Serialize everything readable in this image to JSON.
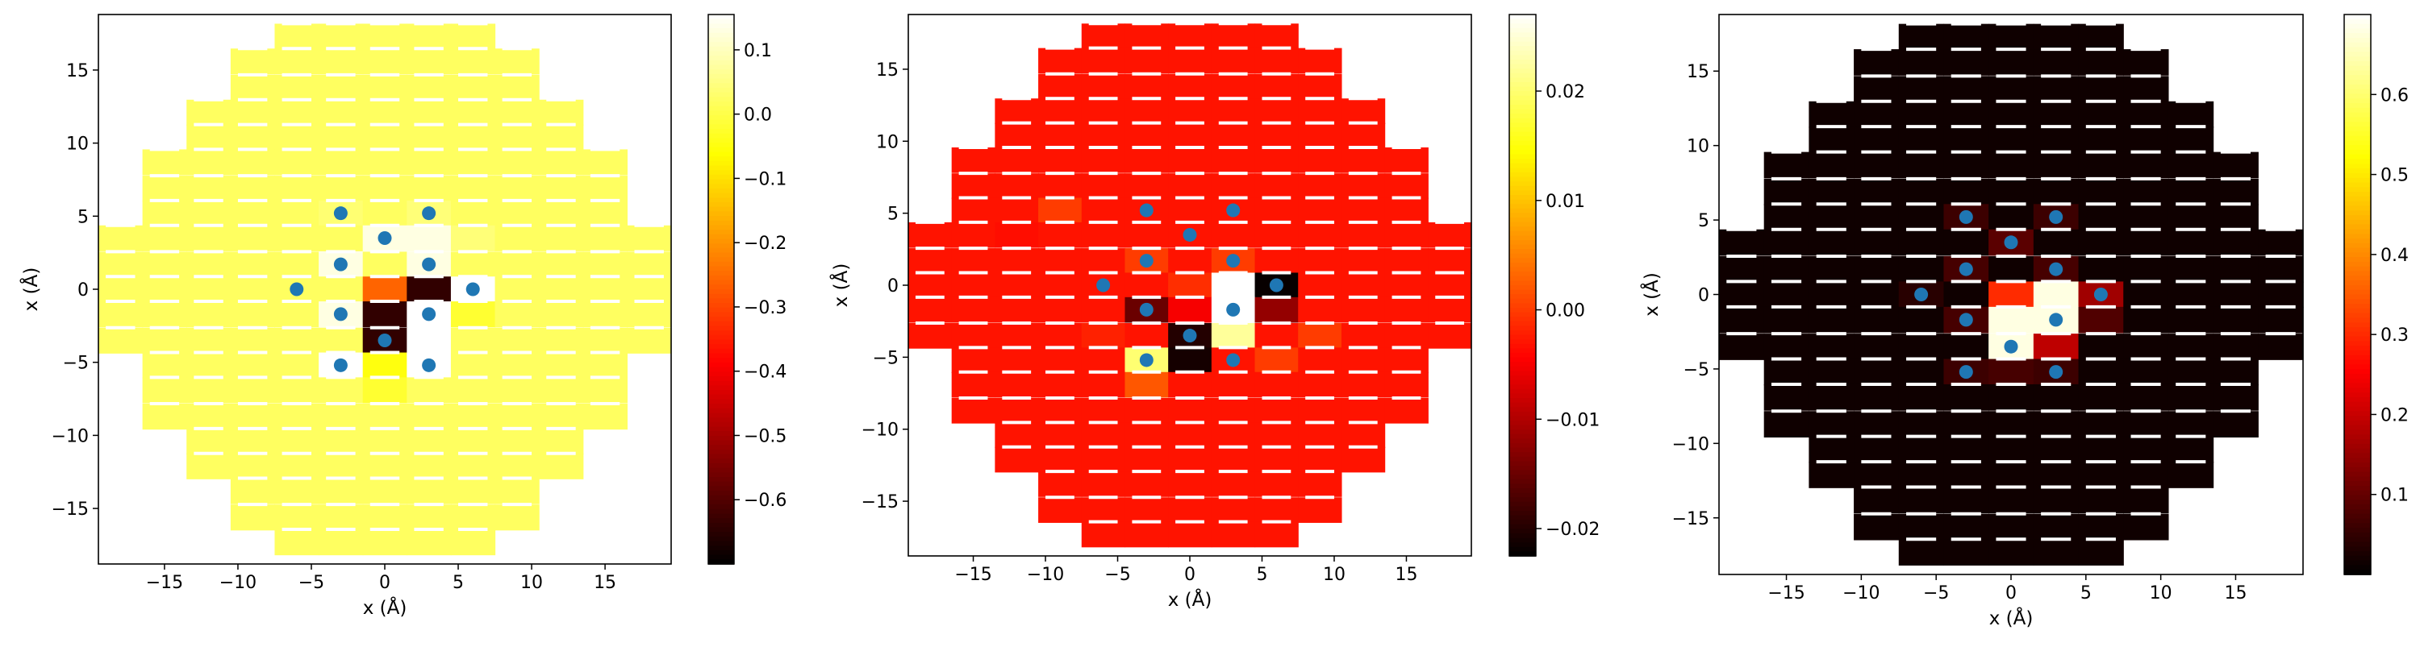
{
  "chart_data": [
    {
      "type": "heatmap",
      "title": "",
      "xlabel": "x (Å)",
      "ylabel": "x (Å)",
      "xlim": [
        -19.5,
        19.5
      ],
      "ylim": [
        -18.8,
        18.8
      ],
      "xticks": [
        -15,
        -10,
        -5,
        0,
        5,
        10,
        15
      ],
      "yticks": [
        -15,
        -10,
        -5,
        0,
        5,
        10,
        15
      ],
      "grid": false,
      "colormap": "hot",
      "colorbar": {
        "min": -0.7,
        "max": 0.155,
        "ticks": [
          0.1,
          0.0,
          -0.1,
          -0.2,
          -0.3,
          -0.4,
          -0.5,
          -0.6
        ],
        "tick_labels": [
          "0.1",
          "0.0",
          "−0.1",
          "−0.2",
          "−0.3",
          "−0.4",
          "−0.5",
          "−0.6"
        ]
      },
      "background_value": 0.02,
      "special_cells": [
        {
          "x": -3,
          "y": 5.2,
          "value": 0.035
        },
        {
          "x": 3,
          "y": 5.2,
          "value": 0.04
        },
        {
          "x": 0,
          "y": 3.5,
          "value": 0.13
        },
        {
          "x": 3,
          "y": 3.5,
          "value": 0.13
        },
        {
          "x": 6,
          "y": 3.5,
          "value": 0.04
        },
        {
          "x": -3,
          "y": 1.7,
          "value": 0.13
        },
        {
          "x": 3,
          "y": 1.7,
          "value": 0.13
        },
        {
          "x": 0,
          "y": 0,
          "value": -0.26
        },
        {
          "x": 3,
          "y": 0,
          "value": -0.64
        },
        {
          "x": 6,
          "y": 0,
          "value": 0.16
        },
        {
          "x": -3,
          "y": -1.7,
          "value": 0.13
        },
        {
          "x": 0,
          "y": -1.7,
          "value": -0.64
        },
        {
          "x": 3,
          "y": -1.7,
          "value": 0.16
        },
        {
          "x": 6,
          "y": -1.7,
          "value": -0.02
        },
        {
          "x": 0,
          "y": -3.5,
          "value": -0.64
        },
        {
          "x": 3,
          "y": -3.5,
          "value": 0.16
        },
        {
          "x": -3,
          "y": -5.2,
          "value": 0.16
        },
        {
          "x": 3,
          "y": -5.2,
          "value": 0.16
        },
        {
          "x": 0,
          "y": -5.2,
          "value": -0.05
        },
        {
          "x": 0,
          "y": -7,
          "value": -0.02
        }
      ],
      "points": [
        {
          "x": -3,
          "y": 5.2
        },
        {
          "x": 3,
          "y": 5.2
        },
        {
          "x": 0,
          "y": 3.5
        },
        {
          "x": -3,
          "y": 1.7
        },
        {
          "x": 3,
          "y": 1.7
        },
        {
          "x": -6,
          "y": 0
        },
        {
          "x": 6,
          "y": 0
        },
        {
          "x": -3,
          "y": -1.7
        },
        {
          "x": 3,
          "y": -1.7
        },
        {
          "x": 0,
          "y": -3.5
        },
        {
          "x": -3,
          "y": -5.2
        },
        {
          "x": 3,
          "y": -5.2
        }
      ]
    },
    {
      "type": "heatmap",
      "title": "",
      "xlabel": "x (Å)",
      "ylabel": "x (Å)",
      "xlim": [
        -19.5,
        19.5
      ],
      "ylim": [
        -18.8,
        18.8
      ],
      "xticks": [
        -15,
        -10,
        -5,
        0,
        5,
        10,
        15
      ],
      "yticks": [
        -15,
        -10,
        -5,
        0,
        5,
        10,
        15
      ],
      "grid": false,
      "colormap": "hot",
      "colorbar": {
        "min": -0.0225,
        "max": 0.027,
        "ticks": [
          0.02,
          0.01,
          0.0,
          -0.01,
          -0.02
        ],
        "tick_labels": [
          "0.02",
          "0.01",
          "0.00",
          "−0.01",
          "−0.02"
        ]
      },
      "background_value": -0.003,
      "special_cells": [
        {
          "x": -12,
          "y": 3.5,
          "value": -0.0035
        },
        {
          "x": -9,
          "y": 5.2,
          "value": 0.0
        },
        {
          "x": -3,
          "y": 1.7,
          "value": -0.0
        },
        {
          "x": 0,
          "y": 0,
          "value": -0.001
        },
        {
          "x": 3,
          "y": 1.7,
          "value": -0.0
        },
        {
          "x": -3,
          "y": -1.7,
          "value": -0.015
        },
        {
          "x": 0,
          "y": -1.7,
          "value": -0.005
        },
        {
          "x": 0,
          "y": -3.5,
          "value": -0.02
        },
        {
          "x": 0,
          "y": -5.2,
          "value": -0.021
        },
        {
          "x": -3,
          "y": -5.2,
          "value": 0.02
        },
        {
          "x": -3,
          "y": -7,
          "value": 0.002
        },
        {
          "x": 3,
          "y": 0,
          "value": 0.027
        },
        {
          "x": 3,
          "y": -1.7,
          "value": 0.027
        },
        {
          "x": 3,
          "y": -3.5,
          "value": 0.022
        },
        {
          "x": 6,
          "y": 0,
          "value": -0.022
        },
        {
          "x": 6,
          "y": -1.7,
          "value": -0.012
        },
        {
          "x": 6,
          "y": -5.2,
          "value": 0.0
        },
        {
          "x": 9,
          "y": -3.5,
          "value": 0.0
        },
        {
          "x": -6,
          "y": -1.7,
          "value": -0.003
        },
        {
          "x": -6,
          "y": -3.5,
          "value": -0.002
        }
      ],
      "points": [
        {
          "x": -3,
          "y": 5.2
        },
        {
          "x": 3,
          "y": 5.2
        },
        {
          "x": 0,
          "y": 3.5
        },
        {
          "x": -3,
          "y": 1.7
        },
        {
          "x": 3,
          "y": 1.7
        },
        {
          "x": -6,
          "y": 0
        },
        {
          "x": 6,
          "y": 0
        },
        {
          "x": -3,
          "y": -1.7
        },
        {
          "x": 3,
          "y": -1.7
        },
        {
          "x": 0,
          "y": -3.5
        },
        {
          "x": -3,
          "y": -5.2
        },
        {
          "x": 3,
          "y": -5.2
        }
      ]
    },
    {
      "type": "heatmap",
      "title": "",
      "xlabel": "x (Å)",
      "ylabel": "x (Å)",
      "xlim": [
        -19.5,
        19.5
      ],
      "ylim": [
        -18.8,
        18.8
      ],
      "xticks": [
        -15,
        -10,
        -5,
        0,
        5,
        10,
        15
      ],
      "yticks": [
        -15,
        -10,
        -5,
        0,
        5,
        10,
        15
      ],
      "grid": false,
      "colormap": "hot",
      "colorbar": {
        "min": 0.0,
        "max": 0.7,
        "ticks": [
          0.1,
          0.2,
          0.3,
          0.4,
          0.5,
          0.6
        ],
        "tick_labels": [
          "0.1",
          "0.2",
          "0.3",
          "0.4",
          "0.5",
          "0.6"
        ]
      },
      "background_value": 0.015,
      "special_cells": [
        {
          "x": -3,
          "y": 5.2,
          "value": 0.06
        },
        {
          "x": 3,
          "y": 5.2,
          "value": 0.06
        },
        {
          "x": 0,
          "y": 3.5,
          "value": 0.09
        },
        {
          "x": -3,
          "y": 1.7,
          "value": 0.07
        },
        {
          "x": 3,
          "y": 1.7,
          "value": 0.07
        },
        {
          "x": 0,
          "y": 0,
          "value": 0.3
        },
        {
          "x": 3,
          "y": 0,
          "value": 0.68
        },
        {
          "x": 6,
          "y": 0,
          "value": 0.16
        },
        {
          "x": -6,
          "y": 0,
          "value": 0.04
        },
        {
          "x": -3,
          "y": -1.7,
          "value": 0.07
        },
        {
          "x": 0,
          "y": -1.7,
          "value": 0.68
        },
        {
          "x": 3,
          "y": -1.7,
          "value": 0.68
        },
        {
          "x": 6,
          "y": -1.7,
          "value": 0.08
        },
        {
          "x": 0,
          "y": -3.5,
          "value": 0.68
        },
        {
          "x": 3,
          "y": -3.5,
          "value": 0.19
        },
        {
          "x": -3,
          "y": -5.2,
          "value": 0.06
        },
        {
          "x": 3,
          "y": -5.2,
          "value": 0.06
        },
        {
          "x": 0,
          "y": -5.2,
          "value": 0.07
        }
      ],
      "points": [
        {
          "x": -3,
          "y": 5.2
        },
        {
          "x": 3,
          "y": 5.2
        },
        {
          "x": 0,
          "y": 3.5
        },
        {
          "x": -3,
          "y": 1.7
        },
        {
          "x": 3,
          "y": 1.7
        },
        {
          "x": -6,
          "y": 0
        },
        {
          "x": 6,
          "y": 0
        },
        {
          "x": -3,
          "y": -1.7
        },
        {
          "x": 3,
          "y": -1.7
        },
        {
          "x": 0,
          "y": -3.5
        },
        {
          "x": -3,
          "y": -5.2
        },
        {
          "x": 3,
          "y": -5.2
        }
      ]
    }
  ],
  "colors": {
    "point": "#1f77b4",
    "axes": "#000000",
    "separator": "#ffffff"
  }
}
